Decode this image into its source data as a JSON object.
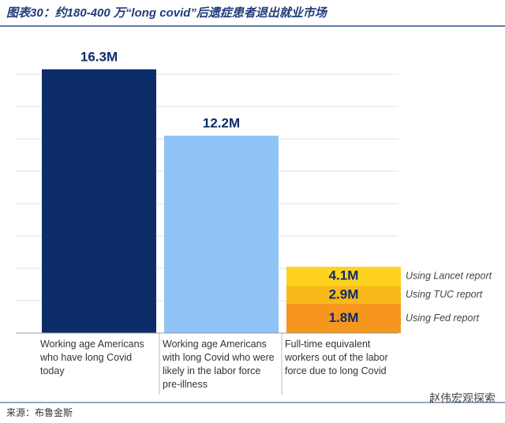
{
  "title": "图表30：约180-400 万“long covid”后遗症患者退出就业市场",
  "source": "来源：布鲁金斯",
  "watermark": "赵伟宏观探索",
  "chart_data": {
    "type": "bar",
    "categories": [
      "Working age Americans who have long Covid today",
      "Working age Americans with long Covid who were likely in the labor force pre-illness",
      "Full-time equivalent workers out of the labor force due to long Covid"
    ],
    "values": [
      16.3,
      12.2,
      null
    ],
    "value_labels": [
      "16.3M",
      "12.2M",
      null
    ],
    "colors": [
      "#0c2c69",
      "#90c4f6",
      null
    ],
    "estimates": [
      {
        "name": "Using Lancet report",
        "value": 4.1,
        "value_label": "4.1M",
        "color": "#ffd21f"
      },
      {
        "name": "Using TUC report",
        "value": 2.9,
        "value_label": "2.9M",
        "color": "#f9b81a"
      },
      {
        "name": "Using Fed report",
        "value": 1.8,
        "value_label": "1.8M",
        "color": "#f7961d"
      }
    ],
    "ylim": [
      0,
      18
    ],
    "yticks": [
      0,
      2,
      4,
      6,
      8,
      10,
      12,
      14,
      16
    ],
    "grid": true
  }
}
